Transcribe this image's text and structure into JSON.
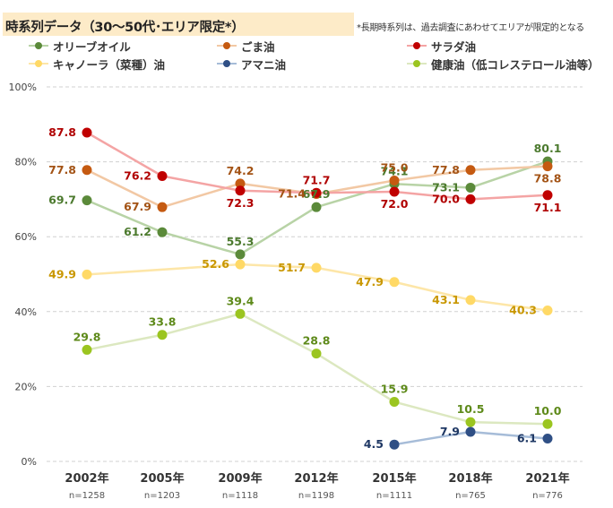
{
  "header": {
    "title": "時系列データ（30～50代･エリア限定*）",
    "note": "*長期時系列は、過去調査にあわせてエリアが限定的となる"
  },
  "chart_data": {
    "type": "line",
    "x_categories": [
      "2002年",
      "2005年",
      "2009年",
      "2012年",
      "2015年",
      "2018年",
      "2021年"
    ],
    "sample_sizes": [
      "n=1258",
      "n=1203",
      "n=1118",
      "n=1198",
      "n=1111",
      "n=765",
      "n=776"
    ],
    "y_ticks": [
      "0%",
      "20%",
      "40%",
      "60%",
      "80%",
      "100%"
    ],
    "ylim": [
      0,
      100
    ],
    "grid": true,
    "legend_position": "top",
    "series": [
      {
        "name": "オリーブオイル",
        "line_color": "#b8d3a6",
        "marker_color": "#5b8a3a",
        "label_color": "#4c7a2e",
        "values": [
          69.7,
          61.2,
          55.3,
          67.9,
          74.1,
          73.1,
          80.1
        ],
        "label_pos": [
          "left",
          "left",
          "above",
          "above",
          "above",
          "left",
          "above"
        ]
      },
      {
        "name": "ごま油",
        "line_color": "#f2c8a4",
        "marker_color": "#c55a11",
        "label_color": "#a35315",
        "values": [
          77.8,
          67.9,
          74.2,
          71.4,
          75.0,
          77.8,
          78.8
        ],
        "label_pos": [
          "left",
          "left",
          "above",
          "left",
          "above",
          "left",
          "below"
        ]
      },
      {
        "name": "サラダ油",
        "line_color": "#f4a4a4",
        "marker_color": "#c00000",
        "label_color": "#b00000",
        "values": [
          87.8,
          76.2,
          72.3,
          71.7,
          72.0,
          70.0,
          71.1
        ],
        "label_pos": [
          "left",
          "left",
          "below",
          "above",
          "below",
          "left",
          "below"
        ]
      },
      {
        "name": "キャノーラ（菜種）油",
        "line_color": "#fde6a8",
        "marker_color": "#ffd966",
        "label_color": "#c99700",
        "values": [
          49.9,
          null,
          52.6,
          51.7,
          47.9,
          43.1,
          40.3
        ],
        "label_pos": [
          "right",
          null,
          "left",
          "right",
          "left",
          "left",
          "left"
        ]
      },
      {
        "name": "アマニ油",
        "line_color": "#a6bcd8",
        "marker_color": "#2f4f85",
        "label_color": "#1f3864",
        "values": [
          null,
          null,
          null,
          null,
          4.5,
          7.9,
          6.1
        ],
        "label_pos": [
          null,
          null,
          null,
          null,
          "left",
          "left",
          "left"
        ]
      },
      {
        "name": "健康油（低コレステロール油等）",
        "line_color": "#dce8c0",
        "marker_color": "#9bc520",
        "label_color": "#5e8a1a",
        "values": [
          29.8,
          33.8,
          39.4,
          28.8,
          15.9,
          10.5,
          10.0
        ],
        "label_pos": [
          "above",
          "above",
          "above",
          "above",
          "above",
          "above",
          "above"
        ]
      }
    ]
  }
}
